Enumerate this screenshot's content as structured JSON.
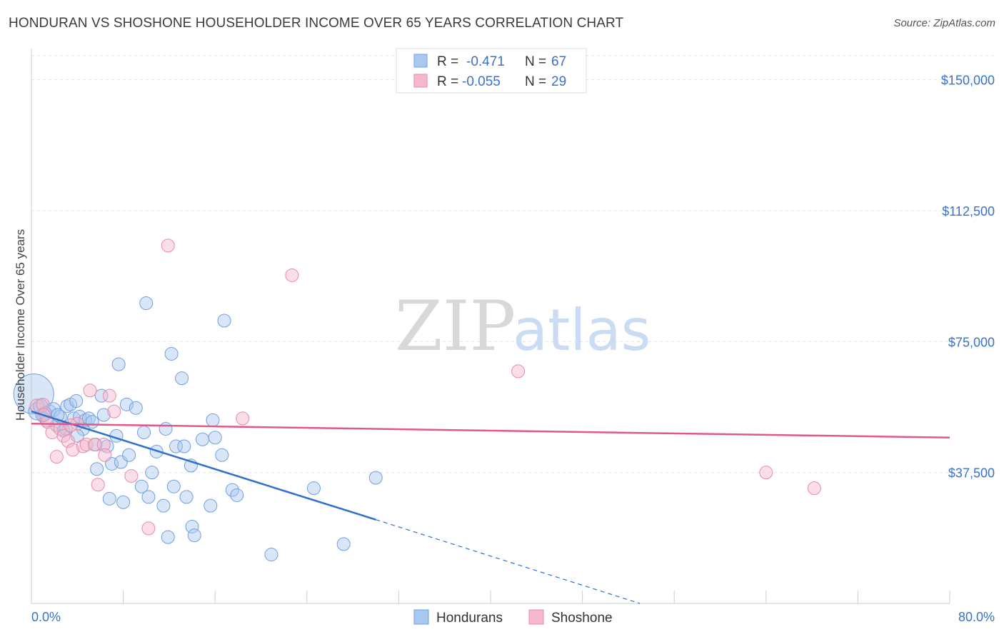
{
  "title": "HONDURAN VS SHOSHONE HOUSEHOLDER INCOME OVER 65 YEARS CORRELATION CHART",
  "source": "Source: ZipAtlas.com",
  "watermark": {
    "zip": "ZIP",
    "atlas": "atlas"
  },
  "legend": {
    "rows": [
      {
        "r_label": "R =",
        "r_value": "-0.471",
        "n_label": "N =",
        "n_value": "67",
        "color": "#a9c8ef"
      },
      {
        "r_label": "R =",
        "r_value": "-0.055",
        "n_label": "N =",
        "n_value": "29",
        "color": "#f5b8cb"
      }
    ],
    "bottom": [
      {
        "label": "Hondurans",
        "color": "#a9c8ef"
      },
      {
        "label": "Shoshone",
        "color": "#f5b8cb"
      }
    ]
  },
  "chart_data": {
    "type": "scatter",
    "xlabel": "",
    "ylabel": "Householder Income Over 65 years",
    "xlim": [
      0,
      80
    ],
    "ylim": [
      0,
      157500
    ],
    "x_tick_labels": [
      "0.0%",
      "80.0%"
    ],
    "y_ticks": [
      37500,
      75000,
      112500,
      150000
    ],
    "y_tick_labels": [
      "$37,500",
      "$75,000",
      "$112,500",
      "$150,000"
    ],
    "grid": true,
    "series": [
      {
        "name": "Hondurans",
        "color": "#a9c8ef",
        "stroke": "#6f9fe0",
        "trend": {
          "x1": 0,
          "y1": 55000,
          "x2": 30,
          "y2": 24000,
          "dash_to_x": 53,
          "dash_to_y": 0,
          "color": "#2f6fce"
        },
        "points": [
          [
            0.2,
            60000,
            28
          ],
          [
            0.5,
            55000,
            12
          ],
          [
            0.8,
            56500,
            10
          ],
          [
            1.0,
            54000,
            10
          ],
          [
            1.3,
            52500,
            9
          ],
          [
            1.6,
            55000,
            9
          ],
          [
            1.9,
            55500,
            10
          ],
          [
            2.2,
            51000,
            9
          ],
          [
            2.5,
            53500,
            9
          ],
          [
            2.8,
            49500,
            9
          ],
          [
            3.1,
            56500,
            9
          ],
          [
            3.4,
            57000,
            9
          ],
          [
            3.7,
            53000,
            9
          ],
          [
            3.9,
            58000,
            9
          ],
          [
            4.2,
            53500,
            9
          ],
          [
            4.5,
            50000,
            9
          ],
          [
            4.7,
            52500,
            9
          ],
          [
            5.0,
            53000,
            9
          ],
          [
            5.3,
            52000,
            9
          ],
          [
            5.6,
            45500,
            9
          ],
          [
            5.7,
            38500,
            9
          ],
          [
            6.1,
            59500,
            9
          ],
          [
            6.3,
            54000,
            9
          ],
          [
            6.6,
            45000,
            9
          ],
          [
            6.8,
            30000,
            9
          ],
          [
            7.0,
            40000,
            9
          ],
          [
            7.4,
            48000,
            9
          ],
          [
            7.6,
            68500,
            9
          ],
          [
            7.8,
            40500,
            9
          ],
          [
            8.0,
            29000,
            9
          ],
          [
            8.3,
            57000,
            9
          ],
          [
            8.5,
            42500,
            9
          ],
          [
            9.1,
            56000,
            9
          ],
          [
            9.6,
            33500,
            9
          ],
          [
            9.8,
            49000,
            9
          ],
          [
            10.0,
            86000,
            9
          ],
          [
            10.2,
            30500,
            9
          ],
          [
            10.5,
            37500,
            9
          ],
          [
            10.9,
            43500,
            9
          ],
          [
            11.5,
            28000,
            9
          ],
          [
            11.7,
            50000,
            9
          ],
          [
            11.9,
            19000,
            9
          ],
          [
            12.2,
            71500,
            9
          ],
          [
            12.4,
            33500,
            9
          ],
          [
            12.6,
            45000,
            9
          ],
          [
            13.1,
            64500,
            9
          ],
          [
            13.3,
            45000,
            9
          ],
          [
            13.5,
            30500,
            9
          ],
          [
            13.9,
            39500,
            9
          ],
          [
            14.0,
            22000,
            9
          ],
          [
            14.2,
            19500,
            9
          ],
          [
            14.9,
            47000,
            9
          ],
          [
            15.6,
            28000,
            9
          ],
          [
            15.8,
            52500,
            9
          ],
          [
            16.0,
            47500,
            9
          ],
          [
            16.6,
            42500,
            9
          ],
          [
            16.8,
            81000,
            9
          ],
          [
            17.5,
            32500,
            9
          ],
          [
            17.9,
            31000,
            9
          ],
          [
            20.9,
            14000,
            9
          ],
          [
            24.6,
            33000,
            9
          ],
          [
            27.2,
            17000,
            9
          ],
          [
            30.0,
            36000,
            9
          ],
          [
            2.3,
            54000,
            9
          ],
          [
            1.2,
            54500,
            9
          ],
          [
            3.0,
            50000,
            9
          ],
          [
            4.0,
            48000,
            9
          ]
        ]
      },
      {
        "name": "Shoshone",
        "color": "#f5b8cb",
        "stroke": "#e88aa8",
        "trend": {
          "x1": 0,
          "y1": 51500,
          "x2": 80,
          "y2": 47500,
          "color": "#e0588a"
        },
        "points": [
          [
            0.5,
            56500,
            10
          ],
          [
            1.0,
            57000,
            9
          ],
          [
            1.4,
            52000,
            9
          ],
          [
            1.8,
            49000,
            9
          ],
          [
            2.2,
            42000,
            9
          ],
          [
            2.5,
            50000,
            9
          ],
          [
            2.8,
            48000,
            9
          ],
          [
            3.2,
            46500,
            9
          ],
          [
            3.6,
            44000,
            9
          ],
          [
            4.0,
            51500,
            9
          ],
          [
            4.5,
            45000,
            9
          ],
          [
            4.8,
            45500,
            9
          ],
          [
            5.1,
            61000,
            9
          ],
          [
            5.5,
            45500,
            9
          ],
          [
            5.8,
            34000,
            9
          ],
          [
            6.3,
            45500,
            9
          ],
          [
            6.4,
            42500,
            9
          ],
          [
            6.8,
            59500,
            9
          ],
          [
            7.2,
            55000,
            9
          ],
          [
            8.7,
            36500,
            9
          ],
          [
            10.2,
            21500,
            9
          ],
          [
            11.9,
            102500,
            9
          ],
          [
            18.4,
            53000,
            9
          ],
          [
            22.7,
            94000,
            9
          ],
          [
            42.4,
            66500,
            9
          ],
          [
            64.0,
            37500,
            9
          ],
          [
            68.2,
            33000,
            9
          ],
          [
            1.1,
            54000,
            9
          ],
          [
            3.4,
            51000,
            9
          ]
        ]
      }
    ]
  }
}
